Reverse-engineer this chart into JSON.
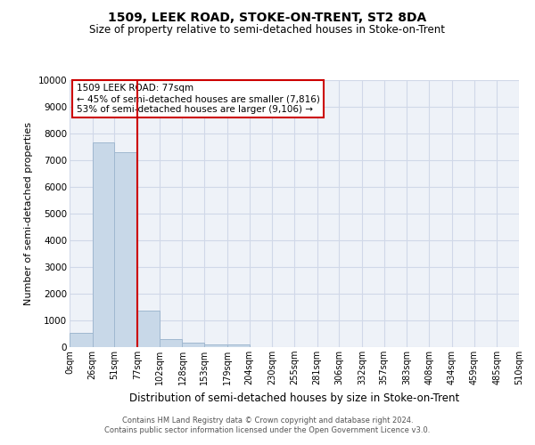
{
  "title1": "1509, LEEK ROAD, STOKE-ON-TRENT, ST2 8DA",
  "title2": "Size of property relative to semi-detached houses in Stoke-on-Trent",
  "xlabel": "Distribution of semi-detached houses by size in Stoke-on-Trent",
  "ylabel": "Number of semi-detached properties",
  "footer1": "Contains HM Land Registry data © Crown copyright and database right 2024.",
  "footer2": "Contains public sector information licensed under the Open Government Licence v3.0.",
  "bin_edges": [
    0,
    26,
    51,
    77,
    102,
    128,
    153,
    179,
    204,
    230,
    255,
    281,
    306,
    332,
    357,
    383,
    408,
    434,
    459,
    485,
    510
  ],
  "bar_values": [
    550,
    7650,
    7300,
    1370,
    310,
    160,
    100,
    90,
    0,
    0,
    0,
    0,
    0,
    0,
    0,
    0,
    0,
    0,
    0,
    0
  ],
  "bar_color": "#c8d8e8",
  "bar_edge_color": "#a0b8d0",
  "property_size": 77,
  "vline_color": "#cc0000",
  "annotation_text": "1509 LEEK ROAD: 77sqm\n← 45% of semi-detached houses are smaller (7,816)\n53% of semi-detached houses are larger (9,106) →",
  "annotation_box_edge": "#cc0000",
  "ylim": [
    0,
    10000
  ],
  "yticks": [
    0,
    1000,
    2000,
    3000,
    4000,
    5000,
    6000,
    7000,
    8000,
    9000,
    10000
  ],
  "xtick_labels": [
    "0sqm",
    "26sqm",
    "51sqm",
    "77sqm",
    "102sqm",
    "128sqm",
    "153sqm",
    "179sqm",
    "204sqm",
    "230sqm",
    "255sqm",
    "281sqm",
    "306sqm",
    "332sqm",
    "357sqm",
    "383sqm",
    "408sqm",
    "434sqm",
    "459sqm",
    "485sqm",
    "510sqm"
  ],
  "grid_color": "#d0d8e8",
  "bg_color": "#eef2f8",
  "fig_width": 6.0,
  "fig_height": 5.0
}
